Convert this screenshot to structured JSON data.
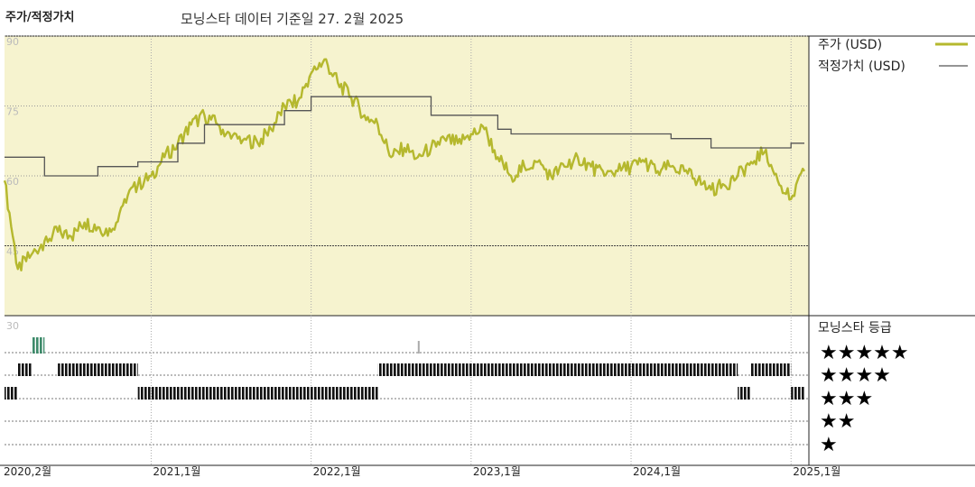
{
  "title": "주가/적정가치",
  "subtitle": "모닝스타 데이터 기준일 27. 2월 2025",
  "chart_data": {
    "type": "line",
    "ylim": [
      30,
      90
    ],
    "y_ticks": [
      90,
      75,
      60,
      45,
      30
    ],
    "x_ticks": [
      "2020,2월",
      "2021,1월",
      "2022,1월",
      "2023,1월",
      "2024,1월",
      "2025,1월"
    ],
    "grid": true,
    "legend_position": "right",
    "series": [
      {
        "name": "주가 (USD)",
        "color": "#b5b82e",
        "points": [
          {
            "x": "2020-02",
            "y": 59
          },
          {
            "x": "2020-03",
            "y": 40
          },
          {
            "x": "2020-04",
            "y": 43
          },
          {
            "x": "2020-05",
            "y": 46
          },
          {
            "x": "2020-06",
            "y": 48
          },
          {
            "x": "2020-07",
            "y": 47
          },
          {
            "x": "2020-08",
            "y": 50
          },
          {
            "x": "2020-09",
            "y": 49
          },
          {
            "x": "2020-10",
            "y": 48
          },
          {
            "x": "2020-11",
            "y": 55
          },
          {
            "x": "2020-12",
            "y": 58
          },
          {
            "x": "2021-01",
            "y": 60
          },
          {
            "x": "2021-02",
            "y": 64
          },
          {
            "x": "2021-03",
            "y": 67
          },
          {
            "x": "2021-04",
            "y": 71
          },
          {
            "x": "2021-05",
            "y": 73
          },
          {
            "x": "2021-06",
            "y": 71
          },
          {
            "x": "2021-07",
            "y": 68
          },
          {
            "x": "2021-08",
            "y": 68
          },
          {
            "x": "2021-09",
            "y": 67
          },
          {
            "x": "2021-10",
            "y": 70
          },
          {
            "x": "2021-11",
            "y": 75
          },
          {
            "x": "2021-12",
            "y": 76
          },
          {
            "x": "2022-01",
            "y": 82
          },
          {
            "x": "2022-02",
            "y": 85
          },
          {
            "x": "2022-03",
            "y": 80
          },
          {
            "x": "2022-04",
            "y": 77
          },
          {
            "x": "2022-05",
            "y": 73
          },
          {
            "x": "2022-06",
            "y": 71
          },
          {
            "x": "2022-07",
            "y": 64
          },
          {
            "x": "2022-08",
            "y": 66
          },
          {
            "x": "2022-09",
            "y": 64
          },
          {
            "x": "2022-10",
            "y": 66
          },
          {
            "x": "2022-11",
            "y": 68
          },
          {
            "x": "2022-12",
            "y": 67
          },
          {
            "x": "2023-01",
            "y": 69
          },
          {
            "x": "2023-02",
            "y": 70
          },
          {
            "x": "2023-03",
            "y": 64
          },
          {
            "x": "2023-04",
            "y": 60
          },
          {
            "x": "2023-05",
            "y": 62
          },
          {
            "x": "2023-06",
            "y": 63
          },
          {
            "x": "2023-07",
            "y": 60
          },
          {
            "x": "2023-08",
            "y": 62
          },
          {
            "x": "2023-09",
            "y": 64
          },
          {
            "x": "2023-10",
            "y": 62
          },
          {
            "x": "2023-11",
            "y": 60
          },
          {
            "x": "2023-12",
            "y": 61
          },
          {
            "x": "2024-01",
            "y": 62
          },
          {
            "x": "2024-02",
            "y": 63
          },
          {
            "x": "2024-03",
            "y": 61
          },
          {
            "x": "2024-04",
            "y": 62
          },
          {
            "x": "2024-05",
            "y": 61
          },
          {
            "x": "2024-06",
            "y": 59
          },
          {
            "x": "2024-07",
            "y": 57
          },
          {
            "x": "2024-08",
            "y": 58
          },
          {
            "x": "2024-09",
            "y": 60
          },
          {
            "x": "2024-10",
            "y": 63
          },
          {
            "x": "2024-11",
            "y": 65
          },
          {
            "x": "2024-12",
            "y": 59
          },
          {
            "x": "2025-01",
            "y": 55
          },
          {
            "x": "2025-02",
            "y": 61
          }
        ]
      },
      {
        "name": "적정가치 (USD)",
        "color": "#555555",
        "points": [
          {
            "x": "2020-02",
            "y": 64
          },
          {
            "x": "2020-05",
            "y": 60
          },
          {
            "x": "2020-08",
            "y": 60
          },
          {
            "x": "2020-09",
            "y": 62
          },
          {
            "x": "2020-12",
            "y": 63
          },
          {
            "x": "2021-03",
            "y": 67
          },
          {
            "x": "2021-05",
            "y": 71
          },
          {
            "x": "2021-11",
            "y": 74
          },
          {
            "x": "2022-01",
            "y": 77
          },
          {
            "x": "2022-07",
            "y": 77
          },
          {
            "x": "2022-10",
            "y": 73
          },
          {
            "x": "2023-03",
            "y": 70
          },
          {
            "x": "2023-04",
            "y": 69
          },
          {
            "x": "2023-12",
            "y": 69
          },
          {
            "x": "2024-04",
            "y": 68
          },
          {
            "x": "2024-07",
            "y": 66
          },
          {
            "x": "2024-11",
            "y": 66
          },
          {
            "x": "2025-01",
            "y": 67
          },
          {
            "x": "2025-02",
            "y": 67
          }
        ]
      }
    ],
    "rating": {
      "title": "모닝스타 등급",
      "levels": [
        "★★★★★",
        "★★★★",
        "★★★",
        "★★",
        "★"
      ],
      "color": "#111111",
      "highlight_color": "#3d8a6a",
      "segments": [
        {
          "stars": 3,
          "from": "2020-02",
          "to": "2020-03"
        },
        {
          "stars": 4,
          "from": "2020-03",
          "to": "2020-04"
        },
        {
          "stars": 5,
          "from": "2020-04",
          "to": "2020-05"
        },
        {
          "stars": 4,
          "from": "2020-06",
          "to": "2020-12"
        },
        {
          "stars": 3,
          "from": "2020-12",
          "to": "2022-06"
        },
        {
          "stars": 4,
          "from": "2022-06",
          "to": "2024-09"
        },
        {
          "stars": 5,
          "from": "2022-09",
          "to": "2022-09"
        },
        {
          "stars": 3,
          "from": "2024-09",
          "to": "2024-10"
        },
        {
          "stars": 4,
          "from": "2024-10",
          "to": "2025-01"
        },
        {
          "stars": 3,
          "from": "2025-01",
          "to": "2025-02"
        }
      ]
    }
  }
}
